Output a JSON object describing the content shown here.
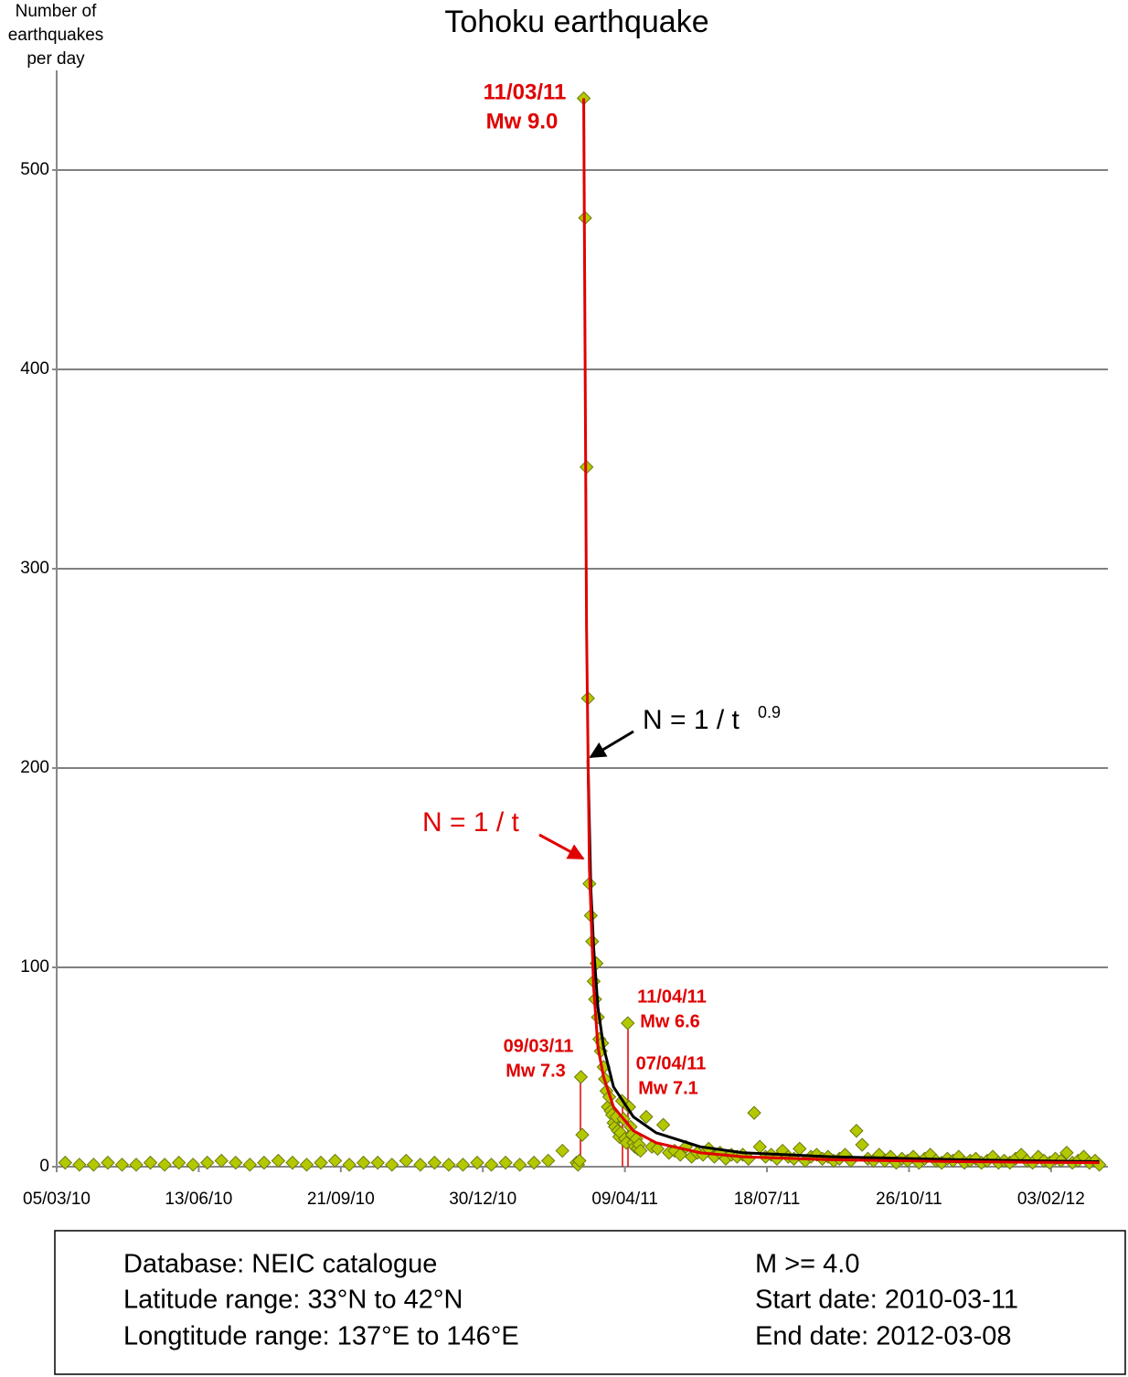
{
  "chart_data": {
    "type": "scatter",
    "title": "Tohoku earthquake",
    "y_label": "Number of earthquakes per day",
    "xlim": [
      "2010-03-05",
      "2012-03-14"
    ],
    "xticks": [
      {
        "value": "2010-03-05",
        "label": "05/03/10"
      },
      {
        "value": "2010-06-13",
        "label": "13/06/10"
      },
      {
        "value": "2010-09-21",
        "label": "21/09/10"
      },
      {
        "value": "2010-12-30",
        "label": "30/12/10"
      },
      {
        "value": "2011-04-09",
        "label": "09/04/11"
      },
      {
        "value": "2011-07-18",
        "label": "18/07/11"
      },
      {
        "value": "2011-10-26",
        "label": "26/10/11"
      },
      {
        "value": "2012-02-03",
        "label": "03/02/12"
      }
    ],
    "ylim": [
      0,
      550
    ],
    "yticks": [
      0,
      100,
      200,
      300,
      400,
      500
    ],
    "grid": true,
    "series": [
      {
        "color": "#b4c800",
        "x": [
          "2010-03-11",
          "2010-03-21",
          "2010-03-31",
          "2010-04-10",
          "2010-04-20",
          "2010-04-30",
          "2010-05-10",
          "2010-05-20",
          "2010-05-30",
          "2010-06-09",
          "2010-06-19",
          "2010-06-29",
          "2010-07-09",
          "2010-07-19",
          "2010-07-29",
          "2010-08-08",
          "2010-08-18",
          "2010-08-28",
          "2010-09-07",
          "2010-09-17",
          "2010-09-27",
          "2010-10-07",
          "2010-10-17",
          "2010-10-27",
          "2010-11-06",
          "2010-11-16",
          "2010-11-26",
          "2010-12-06",
          "2010-12-16",
          "2010-12-26",
          "2011-01-05",
          "2011-01-15",
          "2011-01-25",
          "2011-02-04",
          "2011-02-14",
          "2011-02-24",
          "2011-03-06",
          "2011-03-07",
          "2011-03-08",
          "2011-03-09",
          "2011-03-10",
          "2011-03-11",
          "2011-03-12",
          "2011-03-13",
          "2011-03-14",
          "2011-03-15",
          "2011-03-16",
          "2011-03-17",
          "2011-03-18",
          "2011-03-19",
          "2011-03-20",
          "2011-03-21",
          "2011-03-22",
          "2011-03-23",
          "2011-03-24",
          "2011-03-25",
          "2011-03-26",
          "2011-03-27",
          "2011-03-28",
          "2011-03-29",
          "2011-03-30",
          "2011-03-31",
          "2011-04-01",
          "2011-04-02",
          "2011-04-03",
          "2011-04-04",
          "2011-04-05",
          "2011-04-06",
          "2011-04-07",
          "2011-04-08",
          "2011-04-09",
          "2011-04-10",
          "2011-04-11",
          "2011-04-12",
          "2011-04-13",
          "2011-04-14",
          "2011-04-15",
          "2011-04-16",
          "2011-04-17",
          "2011-04-18",
          "2011-04-19",
          "2011-04-20",
          "2011-04-24",
          "2011-04-28",
          "2011-05-02",
          "2011-05-06",
          "2011-05-10",
          "2011-05-14",
          "2011-05-18",
          "2011-05-22",
          "2011-05-26",
          "2011-05-30",
          "2011-06-03",
          "2011-06-07",
          "2011-06-11",
          "2011-06-15",
          "2011-06-19",
          "2011-06-23",
          "2011-06-27",
          "2011-07-01",
          "2011-07-05",
          "2011-07-09",
          "2011-07-13",
          "2011-07-17",
          "2011-07-21",
          "2011-07-25",
          "2011-07-29",
          "2011-08-02",
          "2011-08-06",
          "2011-08-10",
          "2011-08-14",
          "2011-08-18",
          "2011-08-22",
          "2011-08-26",
          "2011-08-30",
          "2011-09-03",
          "2011-09-07",
          "2011-09-11",
          "2011-09-15",
          "2011-09-19",
          "2011-09-23",
          "2011-09-27",
          "2011-10-01",
          "2011-10-05",
          "2011-10-09",
          "2011-10-13",
          "2011-10-17",
          "2011-10-21",
          "2011-10-25",
          "2011-10-29",
          "2011-11-02",
          "2011-11-06",
          "2011-11-10",
          "2011-11-14",
          "2011-11-18",
          "2011-11-22",
          "2011-11-26",
          "2011-11-30",
          "2011-12-04",
          "2011-12-08",
          "2011-12-12",
          "2011-12-16",
          "2011-12-20",
          "2011-12-24",
          "2011-12-28",
          "2012-01-01",
          "2012-01-05",
          "2012-01-09",
          "2012-01-13",
          "2012-01-17",
          "2012-01-21",
          "2012-01-25",
          "2012-01-29",
          "2012-02-02",
          "2012-02-06",
          "2012-02-10",
          "2012-02-14",
          "2012-02-18",
          "2012-02-22",
          "2012-02-26",
          "2012-03-01",
          "2012-03-05",
          "2012-03-08"
        ],
        "values": [
          2,
          1,
          1,
          2,
          1,
          1,
          2,
          1,
          2,
          1,
          2,
          3,
          2,
          1,
          2,
          3,
          2,
          1,
          2,
          3,
          1,
          2,
          2,
          1,
          3,
          1,
          2,
          1,
          1,
          2,
          1,
          2,
          1,
          2,
          3,
          8,
          2,
          1,
          3,
          45,
          16,
          536,
          476,
          351,
          235,
          142,
          126,
          113,
          93,
          84,
          102,
          75,
          64,
          58,
          62,
          50,
          44,
          38,
          30,
          35,
          28,
          26,
          22,
          20,
          25,
          18,
          15,
          17,
          33,
          24,
          14,
          12,
          72,
          30,
          20,
          16,
          12,
          10,
          14,
          9,
          11,
          8,
          25,
          10,
          9,
          21,
          7,
          8,
          6,
          10,
          5,
          7,
          6,
          9,
          5,
          7,
          4,
          6,
          5,
          6,
          4,
          27,
          10,
          5,
          6,
          4,
          8,
          5,
          4,
          9,
          3,
          5,
          6,
          4,
          5,
          3,
          4,
          6,
          3,
          18,
          11,
          4,
          3,
          6,
          3,
          5,
          2,
          4,
          3,
          5,
          2,
          4,
          6,
          3,
          2,
          4,
          3,
          5,
          2,
          3,
          4,
          2,
          3,
          5,
          2,
          3,
          2,
          4,
          6,
          3,
          2,
          5,
          3,
          2,
          4,
          3,
          7,
          2,
          3,
          5,
          2,
          3,
          1
        ]
      }
    ],
    "fits": [
      {
        "color": "#000000",
        "x": [
          "2011-03-14",
          "2011-03-16",
          "2011-03-18",
          "2011-03-21",
          "2011-03-25",
          "2011-04-01",
          "2011-04-15",
          "2011-05-01",
          "2011-06-01",
          "2011-07-01",
          "2011-09-01",
          "2011-12-01",
          "2012-03-08"
        ],
        "values": [
          204,
          140,
          110,
          80,
          60,
          40,
          25,
          17,
          10,
          7,
          5,
          3.5,
          2.5
        ]
      },
      {
        "color": "#e00000",
        "x": [
          "2011-03-11",
          "2011-03-13",
          "2011-03-15",
          "2011-03-18",
          "2011-03-21",
          "2011-03-25",
          "2011-04-01",
          "2011-04-15",
          "2011-05-01",
          "2011-06-01",
          "2011-07-01",
          "2011-09-01",
          "2011-12-01",
          "2012-03-08"
        ],
        "values": [
          536,
          270,
          150,
          90,
          60,
          45,
          30,
          18,
          12,
          7,
          5,
          3.5,
          2.5,
          2
        ]
      }
    ],
    "annotations": {
      "mainshock": {
        "date": "11/03/11",
        "magnitude": "Mw 9.0"
      },
      "foreshock": {
        "date": "09/03/11",
        "magnitude": "Mw 7.3"
      },
      "aftershock_1": {
        "date": "11/04/11",
        "magnitude": "Mw 6.6"
      },
      "aftershock_2": {
        "date": "07/04/11",
        "magnitude": "Mw 7.1"
      },
      "fit_black": {
        "text": "N = 1 / t",
        "exponent": "0.9"
      },
      "fit_red": {
        "text": "N = 1 / t"
      }
    },
    "info": {
      "left": [
        "Database: NEIC catalogue",
        "Latitude range: 33°N to 42°N",
        "Longtitude range: 137°E to 146°E"
      ],
      "right": [
        "M >= 4.0",
        "Start date: 2010-03-11",
        "End date: 2012-03-08"
      ]
    }
  }
}
